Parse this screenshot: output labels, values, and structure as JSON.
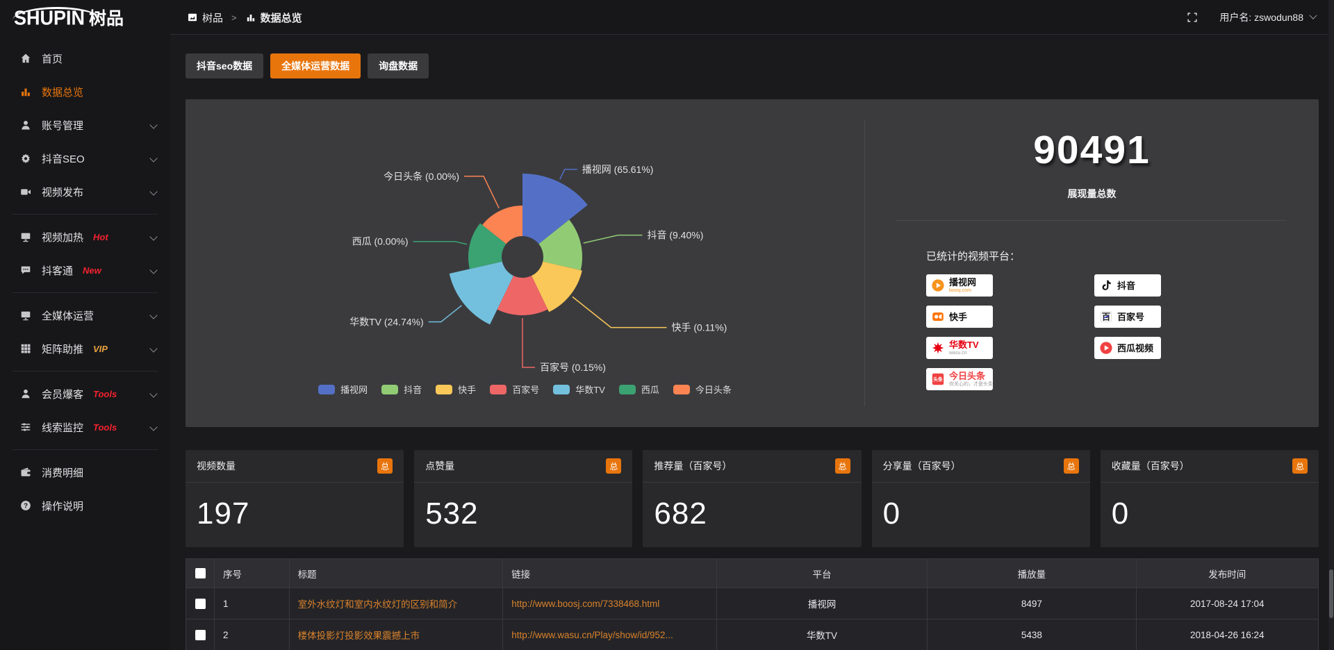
{
  "header": {
    "logo": {
      "en": "SHUPIN",
      "cn": "树品"
    },
    "breadcrumb": {
      "items": [
        {
          "icon": "panel-icon",
          "label": "树品"
        },
        {
          "icon": "bar-chart-icon",
          "label": "数据总览"
        }
      ],
      "separator": ">"
    },
    "user": {
      "label": "用户名: zswodun88"
    }
  },
  "sidebar": {
    "groups": [
      {
        "items": [
          {
            "icon": "home",
            "label": "首页"
          },
          {
            "icon": "chart",
            "label": "数据总览",
            "active": true
          },
          {
            "icon": "user",
            "label": "账号管理",
            "chevron": true
          },
          {
            "icon": "gear",
            "label": "抖音SEO",
            "chevron": true
          },
          {
            "icon": "video",
            "label": "视频发布",
            "chevron": true
          }
        ]
      },
      {
        "items": [
          {
            "icon": "heat",
            "label": "视频加热",
            "badge": "Hot",
            "badge_color": "#f5222d",
            "chevron": true
          },
          {
            "icon": "chat",
            "label": "抖客通",
            "badge": "New",
            "badge_color": "#f5222d",
            "chevron": true
          }
        ]
      },
      {
        "items": [
          {
            "icon": "monitor",
            "label": "全媒体运营",
            "chevron": true
          },
          {
            "icon": "grid",
            "label": "矩阵助推",
            "badge": "VIP",
            "badge_color": "#e6a23c",
            "chevron": true
          }
        ]
      },
      {
        "items": [
          {
            "icon": "member",
            "label": "会员爆客",
            "badge": "Tools",
            "badge_color": "#f5222d",
            "chevron": true
          },
          {
            "icon": "sliders",
            "label": "线索监控",
            "badge": "Tools",
            "badge_color": "#f5222d",
            "chevron": true
          }
        ]
      },
      {
        "items": [
          {
            "icon": "wallet",
            "label": "消费明细"
          },
          {
            "icon": "question",
            "label": "操作说明"
          }
        ]
      }
    ]
  },
  "tabs": [
    {
      "label": "抖音seo数据",
      "active": false
    },
    {
      "label": "全媒体运营数据",
      "active": true
    },
    {
      "label": "询盘数据",
      "active": false
    }
  ],
  "chart_data": {
    "type": "pie",
    "variant": "nightingale-rose",
    "unit": "%",
    "label_format": "{label} ({pct}%)",
    "start": "top",
    "direction": "clockwise",
    "equal_angles": true,
    "inner_radius": 30,
    "slices": [
      {
        "label": "播视网",
        "pct": 65.61,
        "color": "#5470c6",
        "radius": 120
      },
      {
        "label": "抖音",
        "pct": 9.4,
        "color": "#91cc75",
        "radius": 86
      },
      {
        "label": "快手",
        "pct": 0.11,
        "color": "#fac858",
        "radius": 88
      },
      {
        "label": "百家号",
        "pct": 0.15,
        "color": "#ee6666",
        "radius": 84
      },
      {
        "label": "华数TV",
        "pct": 24.74,
        "color": "#73c0de",
        "radius": 108
      },
      {
        "label": "西瓜",
        "pct": 0.0,
        "color": "#3ba272",
        "radius": 78
      },
      {
        "label": "今日头条",
        "pct": 0.0,
        "color": "#fc8452",
        "radius": 74
      }
    ],
    "legend": {
      "position": "bottom",
      "labels": [
        "播视网",
        "抖音",
        "快手",
        "百家号",
        "华数TV",
        "西瓜",
        "今日头条"
      ]
    }
  },
  "summary": {
    "total": "90491",
    "total_label": "展现量总数",
    "platforms_title": "已统计的视频平台：",
    "platforms": [
      {
        "icon": "boosj",
        "name": "播视网",
        "sub": "boosj.com",
        "sub_color": "#f7931e"
      },
      {
        "icon": "douyin",
        "name": "抖音"
      },
      {
        "icon": "kuaishou",
        "name": "快手"
      },
      {
        "icon": "baijia",
        "name": "百家号"
      },
      {
        "icon": "wasu",
        "name": "华数TV",
        "name_color": "#e60012",
        "sub": "wasu.cn",
        "sub_color": "#999999"
      },
      {
        "icon": "xigua",
        "name": "西瓜视频"
      },
      {
        "icon": "toutiao",
        "name": "今日头条",
        "name_color": "#f04142",
        "sub": "你关心的，才是头条",
        "sub_color": "#999999"
      }
    ]
  },
  "stats": [
    {
      "title": "视频数量",
      "badge": "总",
      "value": "197"
    },
    {
      "title": "点赞量",
      "badge": "总",
      "value": "532"
    },
    {
      "title": "推荐量（百家号）",
      "badge": "总",
      "value": "682"
    },
    {
      "title": "分享量（百家号）",
      "badge": "总",
      "value": "0"
    },
    {
      "title": "收藏量（百家号）",
      "badge": "总",
      "value": "0"
    }
  ],
  "table": {
    "columns": [
      "序号",
      "标题",
      "链接",
      "平台",
      "播放量",
      "发布时间"
    ],
    "rows": [
      {
        "num": "1",
        "title": "室外水纹灯和室内水纹灯的区别和简介",
        "link": "http://www.boosj.com/7338468.html",
        "platform": "播视网",
        "views": "8497",
        "time": "2017-08-24 17:04"
      },
      {
        "num": "2",
        "title": "楼体投影灯投影效果震撼上市",
        "link": "http://www.wasu.cn/Play/show/id/952...",
        "platform": "华数TV",
        "views": "5438",
        "time": "2018-04-26 16:24"
      }
    ],
    "has_partial_row": true
  },
  "colors": {
    "accent": "#e8750c",
    "link": "#d9822b",
    "hot": "#f5222d",
    "vip": "#e6a23c",
    "panel": "#3b3b3e"
  }
}
